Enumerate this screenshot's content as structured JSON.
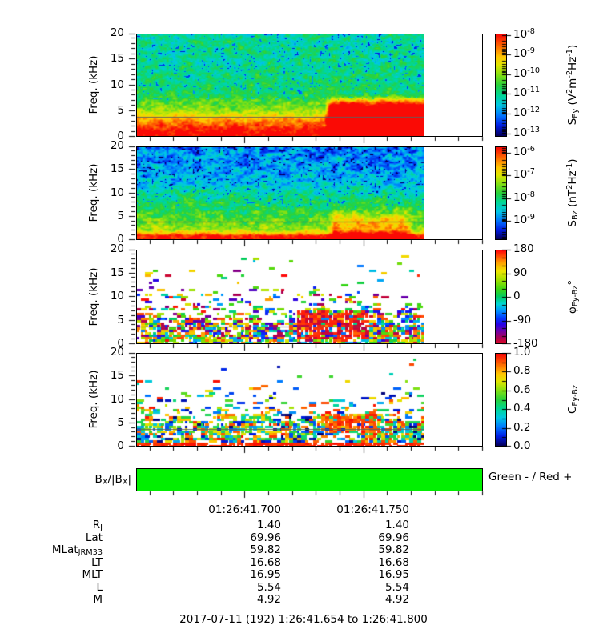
{
  "figure": {
    "description": "Four-panel wave spectrogram figure with colorbars, BX sign bar and ephemeris table",
    "background": "#ffffff"
  },
  "chart_data": [
    {
      "type": "heatmap",
      "name": "electric-field-power-spectrogram",
      "ylabel": "Freq. (kHz)",
      "ylim": [
        0,
        20
      ],
      "yticks": [
        20,
        15,
        10,
        5,
        0
      ],
      "xlim": [
        "01:26:41.654",
        "01:26:41.800"
      ],
      "xticks": [
        "01:26:41.700",
        "01:26:41.750"
      ],
      "x_minor_tick_step_s": 0.01,
      "data_ends_at": "01:26:41.775",
      "overlay_line_khz": 3.6,
      "colormap": "rainbow (navy-blue-cyan-green-yellow-orange-red)",
      "colorbar": {
        "label_html": "S<sub>Ey</sub> (V<sup>2</sup>m<sup>-2</sup>Hz<sup>-1</sup>)",
        "scale": "log",
        "ticks": [
          {
            "html": "10<sup>-8</sup>",
            "frac": 0.012
          },
          {
            "html": "10<sup>-9</sup>",
            "frac": 0.203
          },
          {
            "html": "10<sup>-10</sup>",
            "frac": 0.394
          },
          {
            "html": "10<sup>-11</sup>",
            "frac": 0.585
          },
          {
            "html": "10<sup>-12</sup>",
            "frac": 0.776
          },
          {
            "html": "10<sup>-13</sup>",
            "frac": 0.967
          }
        ]
      },
      "features": "intense red broadband emission below ~5 kHz; yellow band 5-7 kHz; green/cyan with blue speckles above 8 kHz; red burst up to ~8 kHz from ~01:26:41.73 to end of data"
    },
    {
      "type": "heatmap",
      "name": "magnetic-field-power-spectrogram",
      "ylabel": "Freq. (kHz)",
      "ylim": [
        0,
        20
      ],
      "yticks": [
        20,
        15,
        10,
        5,
        0
      ],
      "xlim": [
        "01:26:41.654",
        "01:26:41.800"
      ],
      "xticks": [
        "01:26:41.700",
        "01:26:41.750"
      ],
      "overlay_line_khz": 3.6,
      "colormap": "rainbow (navy-blue-cyan-green-yellow-orange-red)",
      "colorbar": {
        "label_html": "S<sub>Bz</sub> (nT<sup>2</sup>Hz<sup>-1</sup>)",
        "scale": "log",
        "ticks": [
          {
            "html": "10<sup>-6</sup>",
            "frac": 0.068
          },
          {
            "html": "10<sup>-7</sup>",
            "frac": 0.311
          },
          {
            "html": "10<sup>-8</sup>",
            "frac": 0.555
          },
          {
            "html": "10<sup>-9</sup>",
            "frac": 0.798
          }
        ]
      },
      "features": "dark blue/black speckle above 10 kHz; green-cyan 5-10 kHz; yellow-orange below 2 kHz; red strip at 0-1 kHz; green/yellow burst to ~7 kHz near 01:26:41.73-41.77"
    },
    {
      "type": "heatmap",
      "name": "ey-bz-cross-phase-spectrogram",
      "ylabel": "Freq. (kHz)",
      "ylim": [
        0,
        20
      ],
      "yticks": [
        20,
        15,
        10,
        5,
        0
      ],
      "xlim": [
        "01:26:41.654",
        "01:26:41.800"
      ],
      "xticks": [
        "01:26:41.700",
        "01:26:41.750"
      ],
      "overlay_line_khz": 3.6,
      "colormap": "cyclic rainbow, red at both +180 and -180",
      "colorbar": {
        "label_html": "&#966;<sub>Ey-Bz</sub>&#176;",
        "scale": "linear",
        "ticks": [
          {
            "html": "180",
            "frac": 0.0
          },
          {
            "html": "90",
            "frac": 0.25
          },
          {
            "html": "0",
            "frac": 0.5
          },
          {
            "html": "-90",
            "frac": 0.75
          },
          {
            "html": "-180",
            "frac": 1.0
          }
        ]
      },
      "features": "white background with scattered multicolor patches, dense below ~5 kHz, sparse above 10 kHz; dark-red phase cluster ~1-7 kHz near 01:26:41.73-41.77"
    },
    {
      "type": "heatmap",
      "name": "ey-bz-coherence-spectrogram",
      "ylabel": "Freq. (kHz)",
      "ylim": [
        0,
        20
      ],
      "yticks": [
        20,
        15,
        10,
        5,
        0
      ],
      "xlim": [
        "01:26:41.654",
        "01:26:41.800"
      ],
      "xticks": [
        "01:26:41.700",
        "01:26:41.750"
      ],
      "overlay_line_khz": 3.6,
      "colormap": "rainbow (navy-blue-cyan-green-yellow-orange-red)",
      "colorbar": {
        "label_html": "C<sub>Ey-Bz</sub>",
        "scale": "linear",
        "ticks": [
          {
            "html": "1.0",
            "frac": 0.0
          },
          {
            "html": "0.8",
            "frac": 0.2
          },
          {
            "html": "0.6",
            "frac": 0.4
          },
          {
            "html": "0.4",
            "frac": 0.6
          },
          {
            "html": "0.2",
            "frac": 0.8
          },
          {
            "html": "0.0",
            "frac": 1.0
          }
        ]
      },
      "features": "white background, scattered patches dense below ~5 kHz; solid red strip at lowest frequencies; red high-coherence blob ~3-7 kHz near 01:26:41.72-41.77"
    },
    {
      "type": "bar",
      "name": "bx-sign-indicator-bar",
      "label_html": "B<sub>X</sub>/|B<sub>X</sub>|",
      "legend": "Green - / Red +",
      "value": "negative (green) across entire interval",
      "color": "#00f000",
      "span": "full time axis 01:26:41.654 to 01:26:41.800"
    }
  ],
  "time_axis": {
    "start_s": 41.654,
    "end_s": 41.8,
    "first_minor_s": 41.66,
    "minor_step_s": 0.01,
    "major_s": [
      41.7,
      41.75
    ],
    "major_labels": [
      "01:26:41.700",
      "01:26:41.750"
    ]
  },
  "ephemeris": {
    "columns": [
      "01:26:41.700",
      "01:26:41.750"
    ],
    "rows": [
      {
        "label_html": "R<sub>J</sub>",
        "values": [
          "1.40",
          "1.40"
        ]
      },
      {
        "label_html": "Lat",
        "values": [
          "69.96",
          "69.96"
        ]
      },
      {
        "label_html": "MLat<sub>JRM33</sub>",
        "values": [
          "59.82",
          "59.82"
        ]
      },
      {
        "label_html": "LT",
        "values": [
          "16.68",
          "16.68"
        ]
      },
      {
        "label_html": "MLT",
        "values": [
          "16.95",
          "16.95"
        ]
      },
      {
        "label_html": "L",
        "values": [
          "5.54",
          "5.54"
        ]
      },
      {
        "label_html": "M",
        "values": [
          "4.92",
          "4.92"
        ]
      }
    ]
  },
  "footer": {
    "date_line": "2017-07-11 (192) 1:26:41.654 to 1:26:41.800"
  }
}
